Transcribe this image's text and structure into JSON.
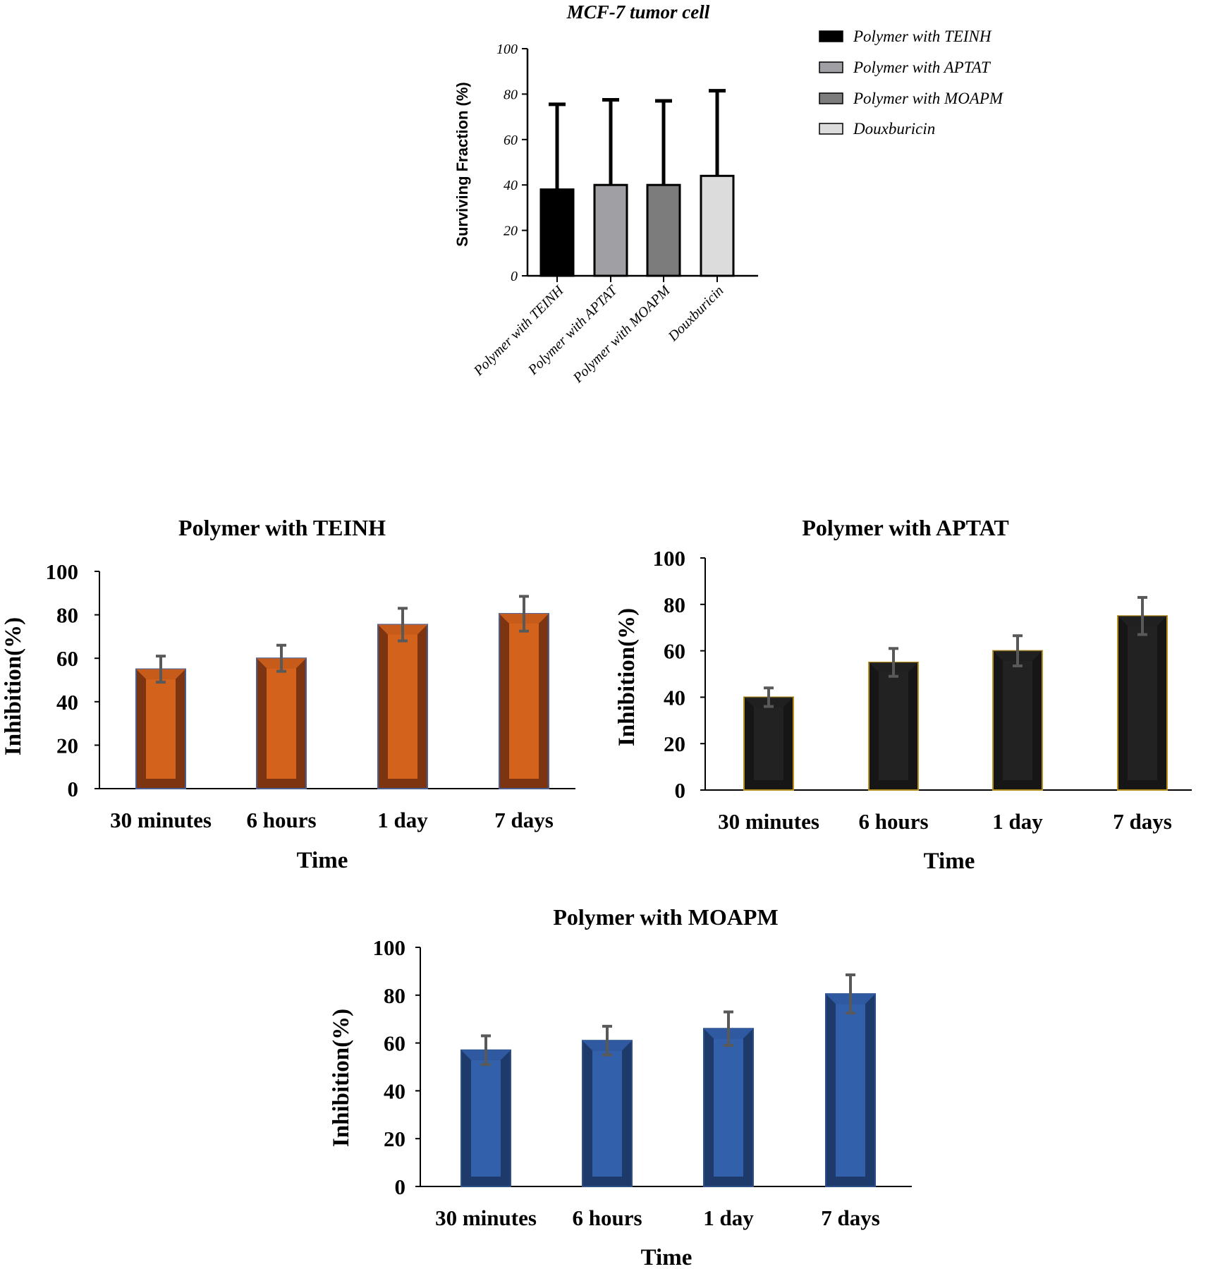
{
  "chart_data": [
    {
      "type": "bar",
      "title": "MCF-7 tumor cell",
      "ylabel": "Surviving Fraction (%)",
      "xlabel": "",
      "ylim": [
        0,
        100
      ],
      "yticks": [
        "0",
        "20",
        "40",
        "60",
        "80",
        "100"
      ],
      "categories": [
        "Polymer with TEINH",
        "Polymer with APTAT",
        "Polymer with MOAPM",
        "Douxburicin"
      ],
      "values": [
        38,
        40,
        40,
        44
      ],
      "errors": [
        37.5,
        37.5,
        37,
        37.5
      ],
      "colors": [
        "#000000",
        "#a0a0a4",
        "#7c7c7c",
        "#dcdcdc"
      ],
      "legend": {
        "placement": "top-right",
        "entries": [
          "Polymer with TEINH",
          "Polymer with APTAT",
          "Polymer with MOAPM",
          "Douxburicin"
        ]
      }
    },
    {
      "type": "bar",
      "title": "Polymer with TEINH",
      "ylabel": "Inhibition(%)",
      "xlabel": "Time",
      "ylim": [
        0,
        100
      ],
      "yticks": [
        "0",
        "20",
        "40",
        "60",
        "80",
        "100"
      ],
      "categories": [
        "30 minutes",
        "6 hours",
        "1 day",
        "7 days"
      ],
      "values": [
        55,
        60,
        75.5,
        80.5
      ],
      "errors": [
        6,
        6,
        7.5,
        8
      ],
      "colors": {
        "front": "#d3621c",
        "side": "#7d3511",
        "border": "#4a5f8f"
      }
    },
    {
      "type": "bar",
      "title": "Polymer with APTAT",
      "ylabel": "Inhibition(%)",
      "xlabel": "Time",
      "ylim": [
        0,
        100
      ],
      "yticks": [
        "0",
        "20",
        "40",
        "60",
        "80",
        "100"
      ],
      "categories": [
        "30 minutes",
        "6 hours",
        "1 day",
        "7 days"
      ],
      "values": [
        40,
        55,
        60,
        75
      ],
      "errors": [
        4,
        6,
        6.5,
        8
      ],
      "colors": {
        "front": "#222222",
        "side": "#161616",
        "border": "#b8911c"
      }
    },
    {
      "type": "bar",
      "title": "Polymer with MOAPM",
      "ylabel": "Inhibition(%)",
      "xlabel": "Time",
      "ylim": [
        0,
        100
      ],
      "yticks": [
        "0",
        "20",
        "40",
        "60",
        "80",
        "100"
      ],
      "categories": [
        "30 minutes",
        "6 hours",
        "1 day",
        "7 days"
      ],
      "values": [
        57,
        61,
        66,
        80.5
      ],
      "errors": [
        6,
        6,
        7,
        8
      ],
      "colors": {
        "front": "#3360aa",
        "side": "#1e3a6a",
        "border": "#2c4f8a"
      }
    }
  ]
}
